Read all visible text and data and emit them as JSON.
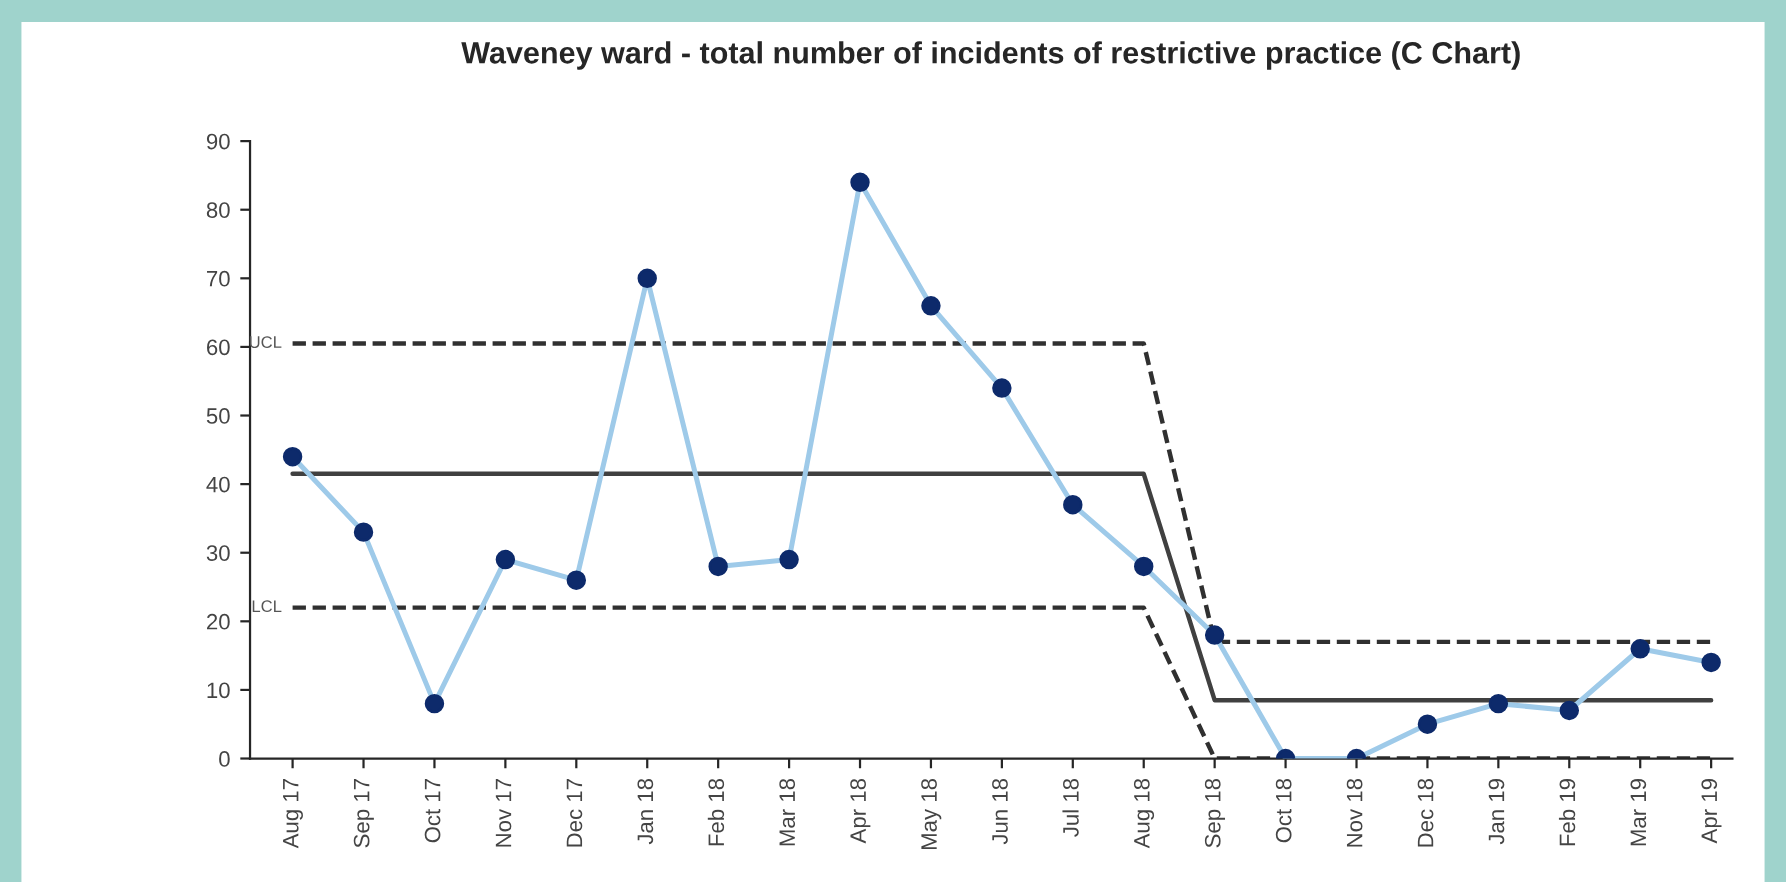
{
  "chart_data": {
    "type": "line",
    "title": "Waveney ward - total number of incidents of restrictive practice (C Chart)",
    "categories": [
      "Aug 17",
      "Sep 17",
      "Oct 17",
      "Nov 17",
      "Dec 17",
      "Jan 18",
      "Feb 18",
      "Mar 18",
      "Apr 18",
      "May 18",
      "Jun 18",
      "Jul 18",
      "Aug 18",
      "Sep 18",
      "Oct 18",
      "Nov 18",
      "Dec 18",
      "Jan 19",
      "Feb 19",
      "Mar 19",
      "Apr 19"
    ],
    "series": [
      {
        "color": "#9ecae9",
        "marker": "circle",
        "values": [
          44,
          33,
          8,
          29,
          26,
          70,
          28,
          29,
          84,
          66,
          54,
          37,
          28,
          18,
          0,
          0,
          5,
          8,
          7,
          16,
          14
        ]
      },
      {
        "color": "#404040",
        "marker": "none",
        "values": [
          41.5,
          41.5,
          41.5,
          41.5,
          41.5,
          41.5,
          41.5,
          41.5,
          41.5,
          41.5,
          41.5,
          41.5,
          41.5,
          8.5,
          8.5,
          8.5,
          8.5,
          8.5,
          8.5,
          8.5,
          8.5
        ]
      },
      {
        "name": "UCL",
        "color": "#303030",
        "marker": "none",
        "line_style": "dashed",
        "values": [
          60.5,
          60.5,
          60.5,
          60.5,
          60.5,
          60.5,
          60.5,
          60.5,
          60.5,
          60.5,
          60.5,
          60.5,
          60.5,
          17,
          17,
          17,
          17,
          17,
          17,
          17,
          17
        ]
      },
      {
        "name": "LCL",
        "color": "#303030",
        "marker": "none",
        "line_style": "dashed",
        "values": [
          22,
          22,
          22,
          22,
          22,
          22,
          22,
          22,
          22,
          22,
          22,
          22,
          22,
          0,
          0,
          0,
          0,
          0,
          0,
          0,
          0
        ]
      }
    ],
    "ylim": [
      0,
      90
    ],
    "yticks": [
      0,
      10,
      20,
      30,
      40,
      50,
      60,
      70,
      80,
      90
    ],
    "grid": false,
    "legend": false
  }
}
